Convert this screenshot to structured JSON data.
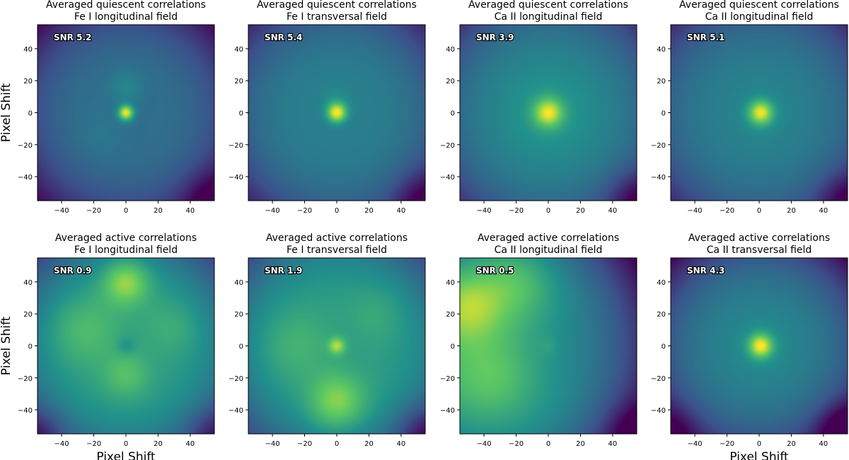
{
  "figure": {
    "colormap": [
      "#440154",
      "#3b528b",
      "#21918c",
      "#5ec962",
      "#fde725"
    ]
  },
  "chart_data": [
    {
      "type": "heatmap",
      "title": "Averaged quiescent correlations",
      "subtitle": "Fe I longitudinal field",
      "snr_label": "SNR 5.2",
      "xlabel": "",
      "ylabel": "Pixel Shift",
      "xlim": [
        -55,
        55
      ],
      "ylim": [
        -55,
        55
      ],
      "xticks": [
        -40,
        -20,
        0,
        20,
        40
      ],
      "yticks": [
        40,
        20,
        0,
        -20,
        -40
      ],
      "base": 0.36,
      "edge": 0.35,
      "corner": "bottom-right",
      "blobs": [
        {
          "x": 0,
          "y": 0,
          "s": 3.2,
          "a": 0.62
        },
        {
          "x": 0,
          "y": 16,
          "s": 7,
          "a": 0.1
        },
        {
          "x": -15,
          "y": -12,
          "s": 10,
          "a": 0.04
        }
      ]
    },
    {
      "type": "heatmap",
      "title": "Averaged quiescent correlations",
      "subtitle": "Fe I transversal field",
      "snr_label": "SNR 5.4",
      "xlabel": "",
      "ylabel": "",
      "xlim": [
        -55,
        55
      ],
      "ylim": [
        -55,
        55
      ],
      "xticks": [
        -40,
        -20,
        0,
        20,
        40
      ],
      "yticks": [
        40,
        20,
        0,
        -20,
        -40
      ],
      "base": 0.42,
      "edge": 0.32,
      "corner": "bottom-right",
      "blobs": [
        {
          "x": 0,
          "y": 0,
          "s": 4,
          "a": 0.55
        },
        {
          "x": 0,
          "y": 6,
          "s": 7,
          "a": 0.08
        }
      ]
    },
    {
      "type": "heatmap",
      "title": "Averaged quiescent correlations",
      "subtitle": "Ca II longitudinal field",
      "snr_label": "SNR 3.9",
      "xlabel": "",
      "ylabel": "",
      "xlim": [
        -55,
        55
      ],
      "ylim": [
        -55,
        55
      ],
      "xticks": [
        -40,
        -20,
        0,
        20,
        40
      ],
      "yticks": [
        40,
        20,
        0,
        -20,
        -40
      ],
      "base": 0.45,
      "edge": 0.3,
      "corner": "bottom-right",
      "blobs": [
        {
          "x": 0,
          "y": 0,
          "s": 6,
          "a": 0.45
        },
        {
          "x": 0,
          "y": 0,
          "s": 16,
          "a": 0.1
        }
      ]
    },
    {
      "type": "heatmap",
      "title": "Averaged quiescent correlations",
      "subtitle": "Ca II longitudinal field",
      "snr_label": "SNR 5.1",
      "xlabel": "",
      "ylabel": "",
      "xlim": [
        -55,
        55
      ],
      "ylim": [
        -55,
        55
      ],
      "xticks": [
        -40,
        -20,
        0,
        20,
        40
      ],
      "yticks": [
        40,
        20,
        0,
        -20,
        -40
      ],
      "base": 0.42,
      "edge": 0.3,
      "corner": "bottom-right",
      "blobs": [
        {
          "x": 1,
          "y": 0,
          "s": 5,
          "a": 0.5
        },
        {
          "x": 1,
          "y": 0,
          "s": 12,
          "a": 0.07
        }
      ]
    },
    {
      "type": "heatmap",
      "title": "Averaged active correlations",
      "subtitle": "Fe I longitudinal field",
      "snr_label": "SNR 0.9",
      "xlabel": "Pixel Shift",
      "ylabel": "Pixel Shift",
      "xlim": [
        -55,
        55
      ],
      "ylim": [
        -55,
        55
      ],
      "xticks": [
        -40,
        -20,
        0,
        20,
        40
      ],
      "yticks": [
        40,
        20,
        0,
        -20,
        -40
      ],
      "base": 0.55,
      "edge": 0.35,
      "corner": "bottom-both",
      "blobs": [
        {
          "x": 0,
          "y": 40,
          "s": 10,
          "a": 0.32
        },
        {
          "x": 0,
          "y": -18,
          "s": 10,
          "a": 0.16
        },
        {
          "x": -25,
          "y": 10,
          "s": 15,
          "a": 0.14
        },
        {
          "x": 28,
          "y": 12,
          "s": 12,
          "a": 0.08
        },
        {
          "x": 0,
          "y": 0,
          "s": 4,
          "a": -0.1
        }
      ]
    },
    {
      "type": "heatmap",
      "title": "Averaged active correlations",
      "subtitle": "Fe I transversal field",
      "snr_label": "SNR 1.9",
      "xlabel": "",
      "ylabel": "",
      "xlim": [
        -55,
        55
      ],
      "ylim": [
        -55,
        55
      ],
      "xticks": [
        -40,
        -20,
        0,
        20,
        40
      ],
      "yticks": [
        40,
        20,
        0,
        -20,
        -40
      ],
      "base": 0.55,
      "edge": 0.33,
      "corner": "bottom-right",
      "blobs": [
        {
          "x": 0,
          "y": 0,
          "s": 3.5,
          "a": 0.32
        },
        {
          "x": 0,
          "y": -35,
          "s": 12,
          "a": 0.28
        },
        {
          "x": -25,
          "y": 0,
          "s": 15,
          "a": 0.1
        },
        {
          "x": 25,
          "y": 20,
          "s": 12,
          "a": 0.06
        }
      ]
    },
    {
      "type": "heatmap",
      "title": "Averaged active correlations",
      "subtitle": "Ca II longitudinal field",
      "snr_label": "SNR 0.5",
      "xlabel": "",
      "ylabel": "",
      "xlim": [
        -55,
        55
      ],
      "ylim": [
        -55,
        55
      ],
      "xticks": [
        -40,
        -20,
        0,
        20,
        40
      ],
      "yticks": [
        40,
        20,
        0,
        -20,
        -40
      ],
      "base": 0.52,
      "edge": 0.3,
      "corner": "bottom-right",
      "gx": -0.0045,
      "blobs": [
        {
          "x": -50,
          "y": 25,
          "s": 15,
          "a": 0.25
        },
        {
          "x": -20,
          "y": 40,
          "s": 15,
          "a": 0.15
        },
        {
          "x": -35,
          "y": -20,
          "s": 15,
          "a": 0.1
        },
        {
          "x": 0,
          "y": 0,
          "s": 4,
          "a": 0.04
        }
      ]
    },
    {
      "type": "heatmap",
      "title": "Averaged active correlations",
      "subtitle": "Ca II transversal field",
      "snr_label": "SNR 4.3",
      "xlabel": "Pixel Shift",
      "ylabel": "",
      "xlim": [
        -55,
        55
      ],
      "ylim": [
        -55,
        55
      ],
      "xticks": [
        -40,
        -20,
        0,
        20,
        40
      ],
      "yticks": [
        40,
        20,
        0,
        -20,
        -40
      ],
      "base": 0.42,
      "edge": 0.42,
      "corner": "both",
      "blobs": [
        {
          "x": 1,
          "y": 0,
          "s": 5,
          "a": 0.52
        },
        {
          "x": 1,
          "y": 0,
          "s": 14,
          "a": 0.08
        }
      ]
    }
  ]
}
